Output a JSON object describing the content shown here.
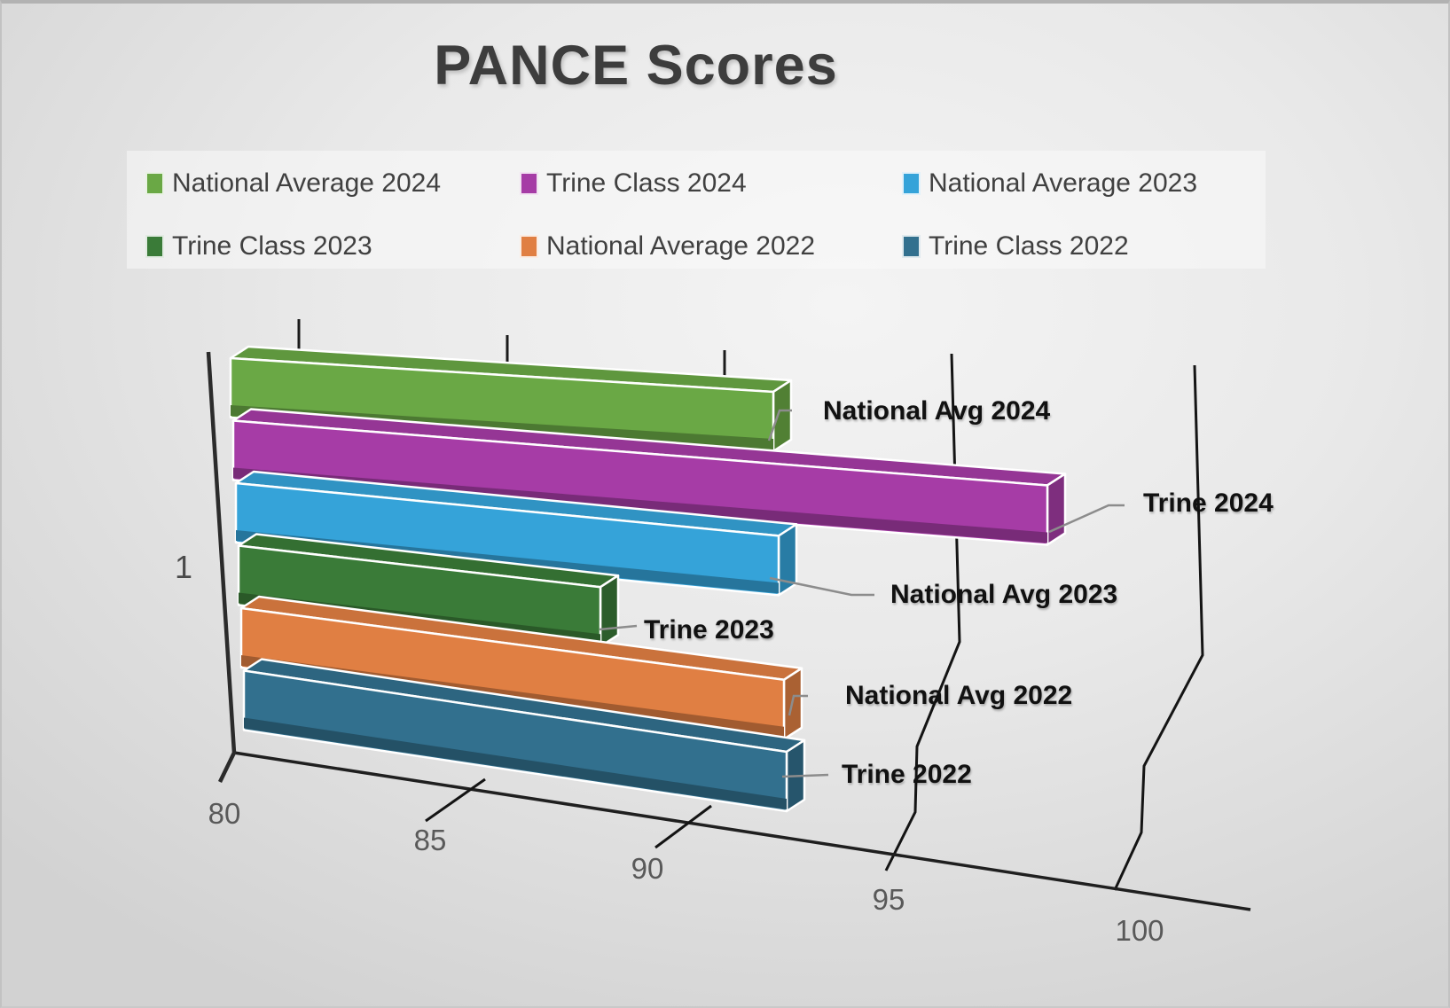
{
  "title": "PANCE Scores",
  "legend": {
    "items": [
      {
        "label": "National Average 2024",
        "color": "#6aa845"
      },
      {
        "label": "Trine Class 2024",
        "color": "#a63ca6"
      },
      {
        "label": "National Average 2023",
        "color": "#35a3d9"
      },
      {
        "label": "Trine Class 2023",
        "color": "#3a7b38"
      },
      {
        "label": "National Average 2022",
        "color": "#e07f43"
      },
      {
        "label": "Trine Class 2022",
        "color": "#32708e"
      }
    ]
  },
  "chart_data": {
    "type": "bar",
    "orientation": "horizontal",
    "projection": "3d",
    "title": "PANCE Scores",
    "category_axis": {
      "labels": [
        "1"
      ]
    },
    "value_axis": {
      "min": 80,
      "max": 100,
      "step": 5,
      "tick_labels": [
        "80",
        "85",
        "90",
        "95",
        "100"
      ]
    },
    "grid": true,
    "legend_position": "top",
    "categories": [
      "1"
    ],
    "series": [
      {
        "name": "National Average 2024",
        "value": 92,
        "color": "#6aa845",
        "callout": "National Avg 2024"
      },
      {
        "name": "Trine Class 2024",
        "value": 98,
        "color": "#a63ca6",
        "callout": "Trine 2024"
      },
      {
        "name": "National Average 2023",
        "value": 92,
        "color": "#35a3d9",
        "callout": "National Avg 2023"
      },
      {
        "name": "Trine Class 2023",
        "value": 88,
        "color": "#3a7b38",
        "callout": "Trine 2023"
      },
      {
        "name": "National Average 2022",
        "value": 92,
        "color": "#e07f43",
        "callout": "National Avg 2022"
      },
      {
        "name": "Trine Class 2022",
        "value": 92,
        "color": "#32708e",
        "callout": "Trine 2022"
      }
    ]
  }
}
